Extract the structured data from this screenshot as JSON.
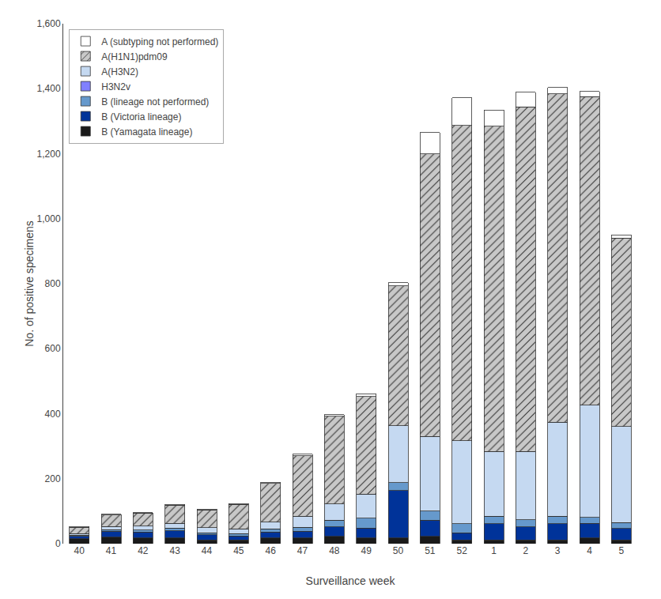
{
  "chart_data": {
    "type": "bar",
    "stacked": true,
    "categories": [
      "40",
      "41",
      "42",
      "43",
      "44",
      "45",
      "46",
      "47",
      "48",
      "49",
      "50",
      "51",
      "52",
      "1",
      "2",
      "3",
      "4",
      "5"
    ],
    "xlabel": "Surveillance week",
    "ylabel": "No. of positive specimens",
    "ylim": [
      0,
      1600
    ],
    "yticks": [
      0,
      200,
      400,
      600,
      800,
      {
        "value": 1000,
        "label": "1,000"
      },
      {
        "value": 1200,
        "label": "1,200"
      },
      {
        "value": 1400,
        "label": "1,400"
      },
      {
        "value": 1600,
        "label": "1,600"
      }
    ],
    "grid": false,
    "legend": "upper left",
    "series": [
      {
        "name": "B (Yamagata lineage)",
        "color": "#1a1a1a",
        "values": [
          15,
          20,
          18,
          18,
          12,
          12,
          18,
          18,
          22,
          18,
          18,
          22,
          12,
          12,
          12,
          12,
          18,
          12
        ]
      },
      {
        "name": "B (Victoria lineage)",
        "color": "#003399",
        "values": [
          8,
          18,
          18,
          22,
          15,
          12,
          18,
          20,
          30,
          30,
          145,
          50,
          22,
          50,
          40,
          50,
          45,
          35
        ]
      },
      {
        "name": "B (lineage not performed)",
        "color": "#6699cc",
        "values": [
          3,
          5,
          6,
          8,
          7,
          7,
          10,
          12,
          20,
          30,
          25,
          28,
          28,
          22,
          22,
          22,
          18,
          18
        ]
      },
      {
        "name": "H3N2v",
        "color": "#8080ff",
        "values": [
          0,
          0,
          0,
          0,
          0,
          0,
          0,
          0,
          0,
          0,
          0,
          0,
          0,
          0,
          0,
          0,
          0,
          0
        ]
      },
      {
        "name": "A(H3N2)",
        "color": "#c5d9f1",
        "values": [
          5,
          10,
          12,
          15,
          15,
          15,
          20,
          35,
          50,
          75,
          175,
          230,
          255,
          200,
          210,
          290,
          345,
          295
        ]
      },
      {
        "name": "A(H1N1)pdm09",
        "color": "#c8c8c8",
        "marker": "hatch",
        "values": [
          20,
          35,
          40,
          55,
          55,
          75,
          120,
          185,
          270,
          300,
          430,
          870,
          970,
          1000,
          1060,
          1010,
          950,
          580
        ]
      },
      {
        "name": "A (subtyping not performed)",
        "color": "#ffffff",
        "values": [
          2,
          3,
          2,
          3,
          2,
          2,
          3,
          5,
          5,
          8,
          10,
          65,
          85,
          50,
          45,
          20,
          15,
          10
        ]
      }
    ]
  }
}
